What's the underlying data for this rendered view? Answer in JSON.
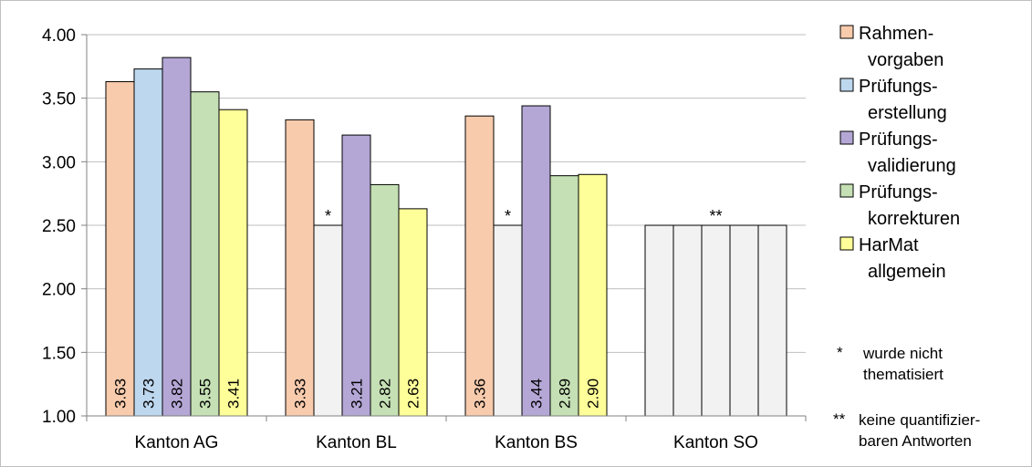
{
  "chart_data": {
    "type": "bar",
    "ylim": [
      1.0,
      4.0
    ],
    "yticks": [
      "1.00",
      "1.50",
      "2.00",
      "2.50",
      "3.00",
      "3.50",
      "4.00"
    ],
    "grid": true,
    "categories": [
      "Kanton AG",
      "Kanton BL",
      "Kanton BS",
      "Kanton SO"
    ],
    "series": [
      {
        "name": "Rahmen-\nvorgaben",
        "color": "#f8cbad",
        "values": [
          3.63,
          3.33,
          3.36,
          2.5
        ],
        "labels": [
          "3.63",
          "3.33",
          "3.36",
          ""
        ],
        "missing": [
          false,
          false,
          false,
          true
        ]
      },
      {
        "name": "Prüfungs-\nerstellung",
        "color": "#bdd7ee",
        "values": [
          3.73,
          2.5,
          2.5,
          2.5
        ],
        "labels": [
          "3.73",
          "",
          "",
          ""
        ],
        "missing": [
          false,
          true,
          true,
          true
        ]
      },
      {
        "name": "Prüfungs-\nvalidierung",
        "color": "#b4a7d6",
        "values": [
          3.82,
          3.21,
          3.44,
          2.5
        ],
        "labels": [
          "3.82",
          "3.21",
          "3.44",
          ""
        ],
        "missing": [
          false,
          false,
          false,
          true
        ]
      },
      {
        "name": "Prüfungs-\nkorrekturen",
        "color": "#c5e0b4",
        "values": [
          3.55,
          2.82,
          2.89,
          2.5
        ],
        "labels": [
          "3.55",
          "2.82",
          "2.89",
          ""
        ],
        "missing": [
          false,
          false,
          false,
          true
        ]
      },
      {
        "name": "HarMat\nallgemein",
        "color": "#ffff99",
        "values": [
          3.41,
          2.63,
          2.9,
          2.5
        ],
        "labels": [
          "3.41",
          "2.63",
          "2.90",
          ""
        ],
        "missing": [
          false,
          false,
          false,
          true
        ]
      }
    ],
    "missing_color": "#f2f2f2",
    "annotations": [
      {
        "category": 1,
        "series": 1,
        "text": "*"
      },
      {
        "category": 2,
        "series": 1,
        "text": "*"
      },
      {
        "category": 3,
        "series": 2,
        "text": "**"
      }
    ],
    "legend_position": "right",
    "notes": [
      {
        "marker": "*",
        "lines": [
          "wurde nicht",
          "thematisiert"
        ]
      },
      {
        "marker": "**",
        "lines": [
          "keine quantifizier-",
          "baren Antworten"
        ]
      }
    ]
  }
}
